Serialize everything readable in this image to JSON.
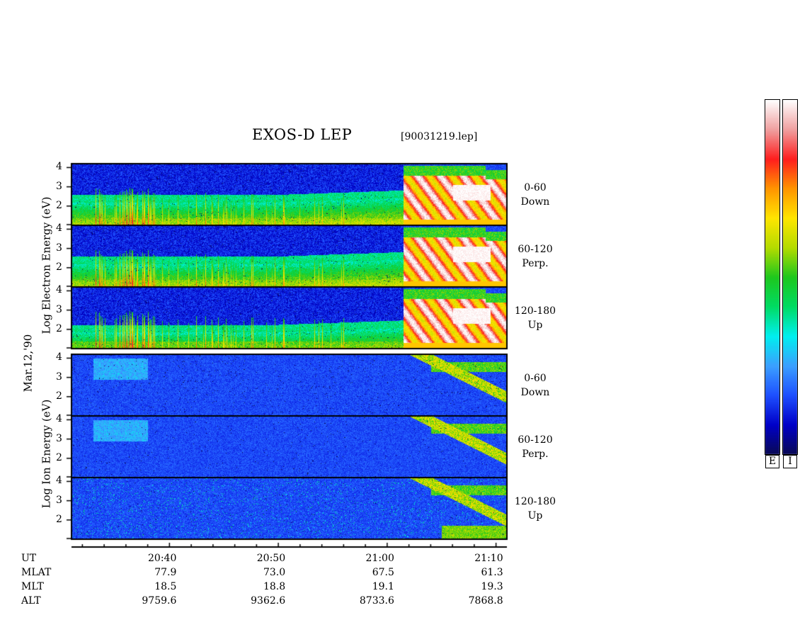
{
  "chart_data": {
    "type": "heatmap",
    "title": "EXOS-D LEP",
    "subtitle": "[90031219.lep]",
    "date_label": "Mar.12,'90",
    "groups": [
      {
        "ylabel": "Log  Electron  Energy (eV)",
        "panels": [
          {
            "label_line1": "0-60",
            "label_line2": "Down"
          },
          {
            "label_line1": "60-120",
            "label_line2": "Perp."
          },
          {
            "label_line1": "120-180",
            "label_line2": "Up"
          }
        ]
      },
      {
        "ylabel": "Log  Ion  Energy (eV)",
        "panels": [
          {
            "label_line1": "0-60",
            "label_line2": "Down"
          },
          {
            "label_line1": "60-120",
            "label_line2": "Perp."
          },
          {
            "label_line1": "120-180",
            "label_line2": "Up"
          }
        ]
      }
    ],
    "yticks": [
      "4",
      "3",
      "2"
    ],
    "ylim": [
      1,
      4.2
    ],
    "x_time_range": [
      "20:31",
      "21:11"
    ],
    "xticks": [
      "20:40",
      "20:50",
      "21:00",
      "21:10"
    ],
    "ephemeris": {
      "rows": [
        {
          "name": "UT",
          "values": [
            "20:40",
            "20:50",
            "21:00",
            "21:10"
          ]
        },
        {
          "name": "MLAT",
          "values": [
            "77.9",
            "73.0",
            "67.5",
            "61.3"
          ]
        },
        {
          "name": "MLT",
          "values": [
            "18.5",
            "18.8",
            "19.1",
            "19.3"
          ]
        },
        {
          "name": "ALT",
          "values": [
            "9759.6",
            "9362.6",
            "8733.6",
            "7868.8"
          ]
        }
      ]
    },
    "colorbars": [
      {
        "label": "E"
      },
      {
        "label": "I"
      }
    ],
    "colorscale": [
      "#0a0a55",
      "#0000c8",
      "#1e50ff",
      "#3ca0ff",
      "#00f0f0",
      "#00dc64",
      "#1ec81e",
      "#b4dc00",
      "#ffe600",
      "#ff9600",
      "#ff1e1e",
      "#f0a0a0",
      "#ffffff"
    ]
  }
}
